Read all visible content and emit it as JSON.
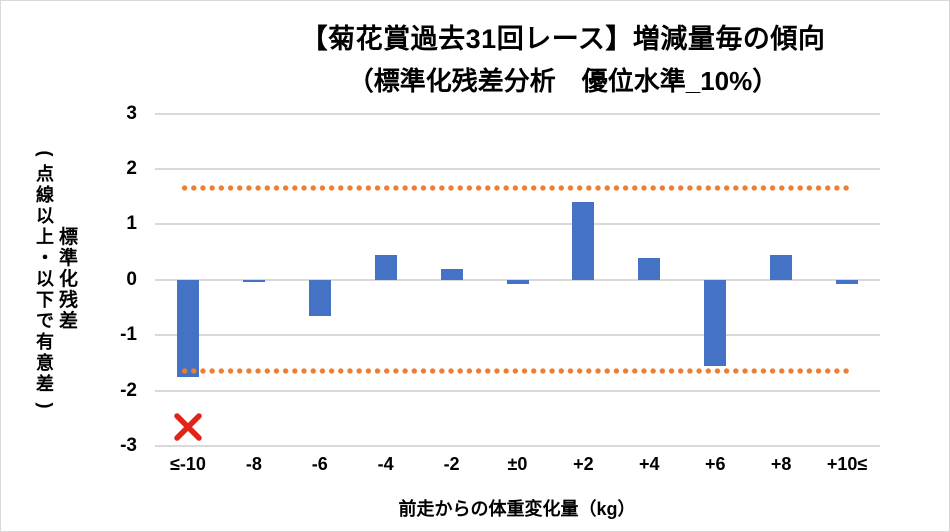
{
  "title": {
    "line1": "【菊花賞過去31回レース】増減量毎の傾向",
    "line2": "（標準化残差分析　優位水準_10%）"
  },
  "chart_data": {
    "type": "bar",
    "title": "【菊花賞過去31回レース】増減量毎の傾向（標準化残差分析 優位水準_10%）",
    "categories": [
      "≤-10",
      "-8",
      "-6",
      "-4",
      "-2",
      "±0",
      "+2",
      "+4",
      "+6",
      "+8",
      "+10≤"
    ],
    "values": [
      -1.75,
      -0.05,
      -0.65,
      0.45,
      0.2,
      -0.07,
      1.4,
      0.4,
      -1.55,
      0.45,
      -0.07
    ],
    "xlabel": "前走からの体重変化量（kg）",
    "ylabel": "標準化残差（点線以上・以下で有意差）",
    "ylim": [
      -3,
      3
    ],
    "yticks": [
      "3",
      "2",
      "1",
      "0",
      "-1",
      "-2",
      "-3"
    ],
    "grid": true,
    "legend": "none",
    "significance_lines": {
      "upper": 1.65,
      "lower": -1.65,
      "style": "dotted"
    },
    "marker": {
      "category": "≤-10",
      "value": -2.65,
      "symbol": "×"
    }
  },
  "y_axis": {
    "title_main": "標準化残差",
    "title_sub": "(点線以上・以下で有意差)"
  },
  "x_axis": {
    "title": "前走からの体重変化量（kg）"
  },
  "colors": {
    "bar": "#4472C4",
    "gridline": "#D9D9D9",
    "significance_dots": "#ED7D31",
    "marker_red": "#E2231A",
    "text": "#000000",
    "border": "#D9D9D9"
  }
}
